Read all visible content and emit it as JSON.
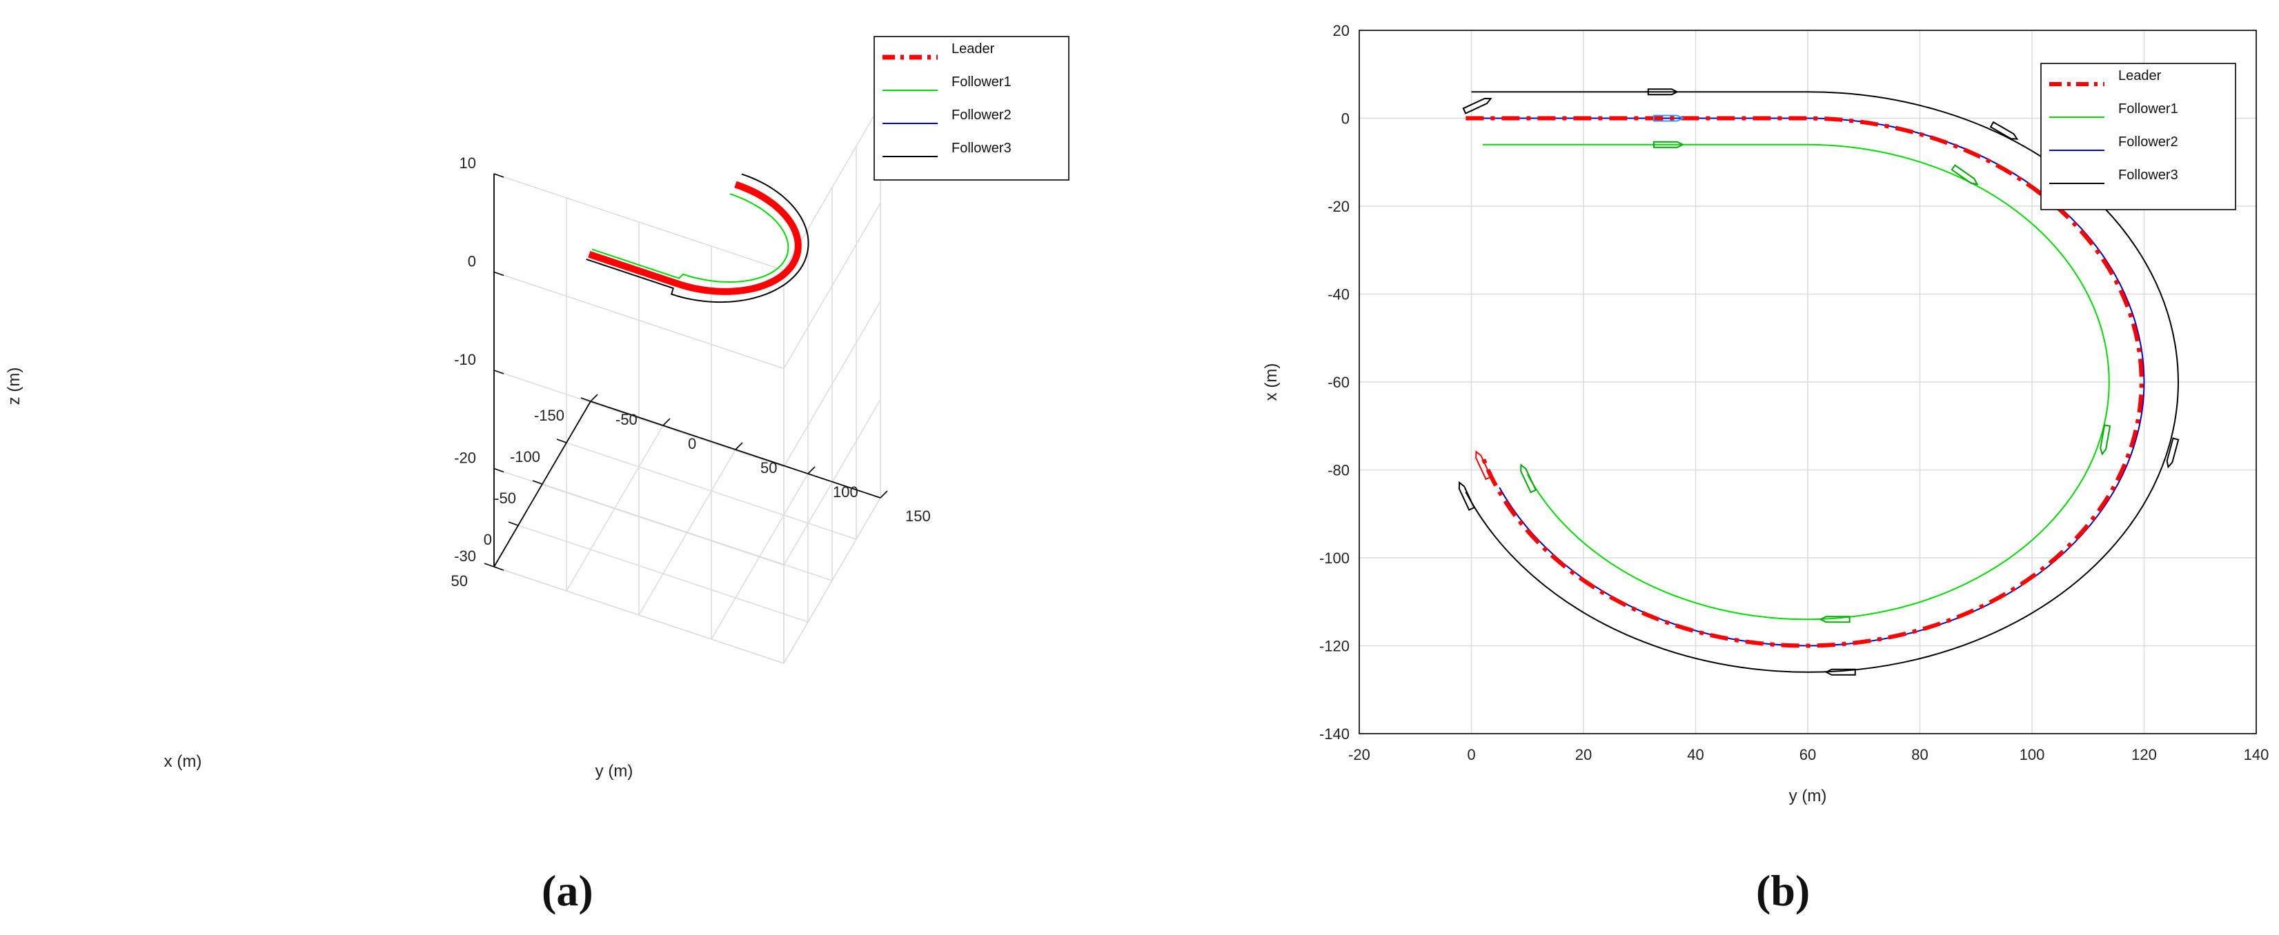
{
  "chart_data": [
    {
      "panel": "(a)",
      "type": "line",
      "projection": "3d",
      "xlabel": "x (m)",
      "ylabel": "y (m)",
      "zlabel": "z (m)",
      "xlim": [
        -150,
        50
      ],
      "ylim": [
        -50,
        150
      ],
      "zlim": [
        -30,
        10
      ],
      "x_ticks": [
        -150,
        -100,
        -50,
        0,
        50
      ],
      "y_ticks": [
        -50,
        0,
        50,
        100,
        150
      ],
      "z_ticks": [
        -30,
        -20,
        -10,
        0,
        10
      ],
      "grid": true,
      "legend_position": "outside-top-right",
      "series": [
        {
          "name": "Leader",
          "color": "#ff0000",
          "style": "dash-dot"
        },
        {
          "name": "Follower1",
          "color": "#00dd00",
          "style": "solid"
        },
        {
          "name": "Follower2",
          "color": "#0000cc",
          "style": "solid"
        },
        {
          "name": "Follower3",
          "color": "#000000",
          "style": "solid"
        }
      ]
    },
    {
      "panel": "(b)",
      "type": "line",
      "xlabel": "y (m)",
      "ylabel": "x (m)",
      "xlim": [
        -20,
        140
      ],
      "ylim": [
        -140,
        20
      ],
      "x_ticks": [
        -20,
        0,
        20,
        40,
        60,
        80,
        100,
        120,
        140
      ],
      "y_ticks": [
        -140,
        -120,
        -100,
        -80,
        -60,
        -40,
        -20,
        0,
        20
      ],
      "grid": true,
      "legend_position": "top-right",
      "series": [
        {
          "name": "Leader",
          "color": "#ff0000",
          "style": "dash-dot",
          "path": [
            [
              -1,
              0
            ],
            [
              60,
              0
            ],
            [
              60,
              -60,
              60
            ],
            [
              2,
              -77
            ]
          ]
        },
        {
          "name": "Follower1",
          "color": "#00dd00",
          "style": "solid",
          "path": [
            [
              2,
              -6
            ],
            [
              60,
              -6
            ],
            [
              60,
              -60,
              54
            ],
            [
              10,
              -81
            ]
          ]
        },
        {
          "name": "Follower2",
          "color": "#0000cc",
          "style": "solid",
          "path": [
            [
              0,
              0
            ],
            [
              60,
              0
            ],
            [
              60,
              -60,
              60
            ],
            [
              5,
              -84
            ]
          ]
        },
        {
          "name": "Follower3",
          "color": "#000000",
          "style": "solid",
          "path": [
            [
              0,
              6
            ],
            [
              60,
              6
            ],
            [
              60,
              -60,
              66
            ],
            [
              -1,
              -85
            ]
          ]
        }
      ]
    }
  ],
  "labels": {
    "panel_a": "(a)",
    "panel_b": "(b)"
  }
}
